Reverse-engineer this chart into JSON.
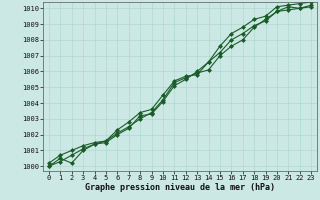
{
  "xlabel": "Graphe pression niveau de la mer (hPa)",
  "ylim": [
    999.7,
    1010.4
  ],
  "xlim": [
    -0.5,
    23.5
  ],
  "yticks": [
    1000,
    1001,
    1002,
    1003,
    1004,
    1005,
    1006,
    1007,
    1008,
    1009,
    1010
  ],
  "xticks": [
    0,
    1,
    2,
    3,
    4,
    5,
    6,
    7,
    8,
    9,
    10,
    11,
    12,
    13,
    14,
    15,
    16,
    17,
    18,
    19,
    20,
    21,
    22,
    23
  ],
  "background_color": "#cce8e4",
  "grid_color": "#b0d8d0",
  "line_color": "#1a5c28",
  "line1": [
    1000.0,
    1000.5,
    1000.2,
    1001.0,
    1001.4,
    1001.6,
    1002.1,
    1002.5,
    1003.0,
    1003.4,
    1004.2,
    1005.3,
    1005.6,
    1005.9,
    1006.1,
    1007.0,
    1007.6,
    1008.0,
    1008.8,
    1009.3,
    1009.8,
    1010.1,
    1010.0,
    1010.2
  ],
  "line2": [
    1000.2,
    1000.7,
    1001.0,
    1001.3,
    1001.5,
    1001.6,
    1002.3,
    1002.8,
    1003.4,
    1003.6,
    1004.5,
    1005.4,
    1005.7,
    1005.8,
    1006.6,
    1007.6,
    1008.4,
    1008.8,
    1009.3,
    1009.5,
    1010.1,
    1010.2,
    1010.3,
    1010.4
  ],
  "line3": [
    1000.0,
    1000.3,
    1000.7,
    1001.1,
    1001.4,
    1001.5,
    1002.0,
    1002.4,
    1003.2,
    1003.3,
    1004.1,
    1005.1,
    1005.5,
    1006.0,
    1006.6,
    1007.2,
    1008.0,
    1008.4,
    1008.9,
    1009.2,
    1009.8,
    1009.9,
    1010.0,
    1010.1
  ],
  "marker": "D",
  "markersize": 2.0,
  "linewidth": 0.8,
  "tick_fontsize": 5.0,
  "label_fontsize": 6.0
}
